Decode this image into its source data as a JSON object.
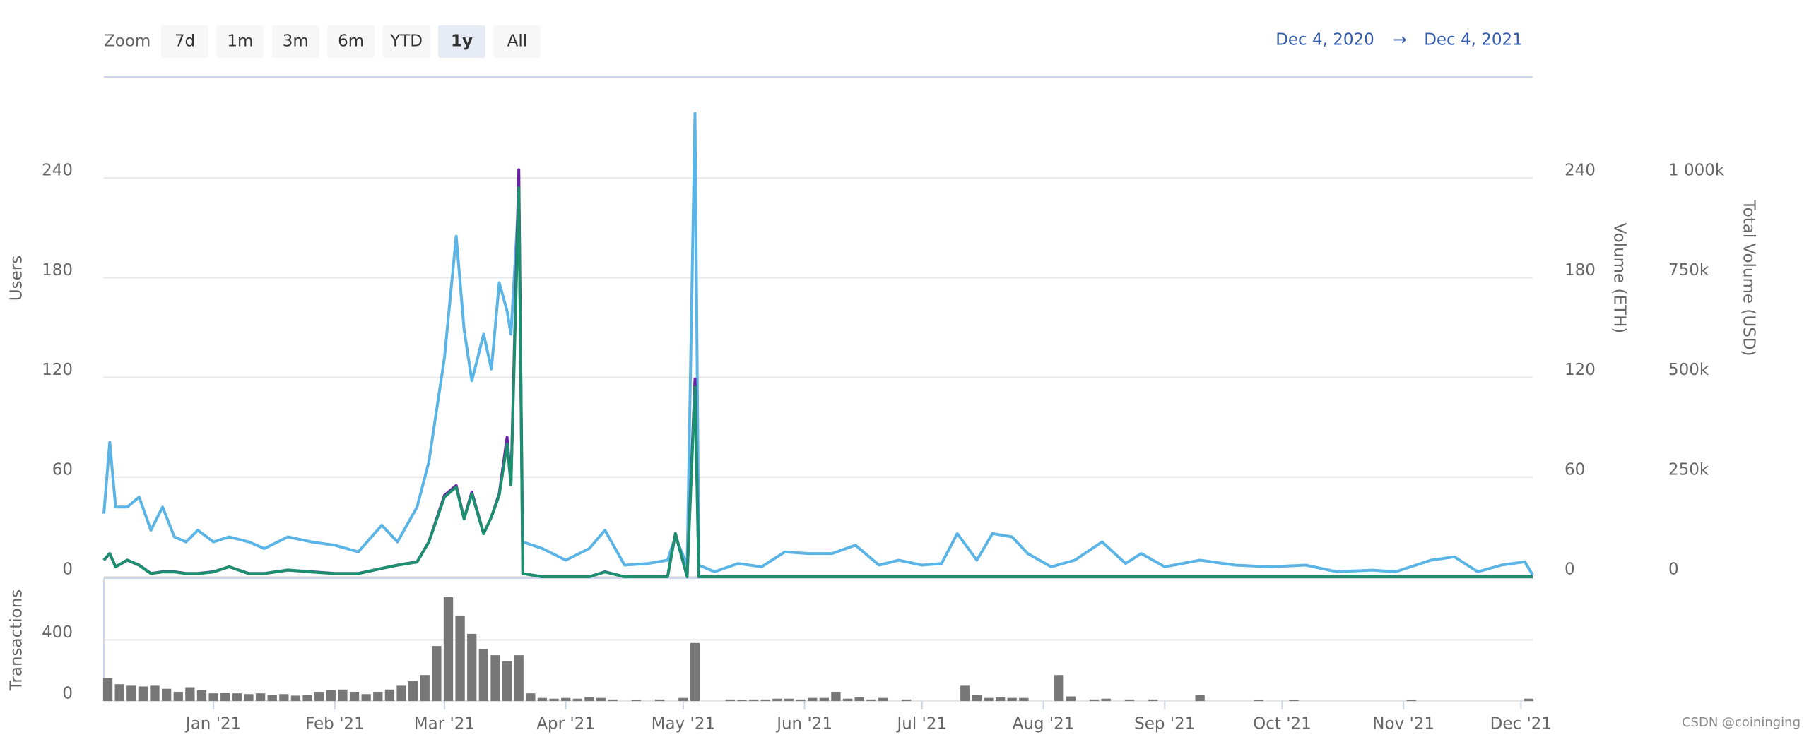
{
  "range_selector": {
    "label": "Zoom",
    "buttons": [
      "7d",
      "1m",
      "3m",
      "6m",
      "YTD",
      "1y",
      "All"
    ],
    "selected": "1y",
    "from": "Dec 4, 2020",
    "arrow": "→",
    "to": "Dec 4, 2021"
  },
  "watermark": "CSDN @coininging",
  "chart_data": [
    {
      "type": "line",
      "ylabel": "Users",
      "y2label": "Volume (ETH)",
      "y3label": "Total Volume (USD)",
      "xlim": [
        0,
        365
      ],
      "x": [
        0,
        1.5,
        3,
        6,
        9,
        12,
        15,
        18,
        21,
        24,
        28,
        32,
        37,
        41,
        47,
        53,
        59,
        65,
        71,
        75,
        80,
        83,
        87,
        90,
        92,
        94,
        97,
        99,
        101,
        103,
        104,
        106,
        107,
        112,
        118,
        124,
        128,
        133,
        139,
        144,
        146,
        149,
        151,
        152,
        156,
        162,
        168,
        174,
        180,
        186,
        192,
        198,
        203,
        209,
        214,
        218,
        223,
        227,
        232,
        236,
        242,
        248,
        255,
        261,
        265,
        271,
        280,
        289,
        298,
        307,
        315,
        324,
        330,
        339,
        345,
        351,
        357,
        363,
        365
      ],
      "ylim": [
        0,
        300
      ],
      "yticks": [
        0,
        60,
        120,
        180,
        240
      ],
      "y2lim": [
        0,
        300
      ],
      "y2ticks": [
        0,
        60,
        120,
        180,
        240
      ],
      "y3lim": [
        0,
        1250000
      ],
      "y3ticks": [
        {
          "value": 0,
          "label": "0"
        },
        {
          "value": 250000,
          "label": "250k"
        },
        {
          "value": 500000,
          "label": "500k"
        },
        {
          "value": 750000,
          "label": "750k"
        },
        {
          "value": 1000000,
          "label": "1 000k"
        }
      ],
      "grid": true,
      "series": [
        {
          "axis": "y",
          "color": "#5ab4e5",
          "values": [
            38,
            81,
            42,
            42,
            48,
            28,
            42,
            24,
            21,
            28,
            21,
            24,
            21,
            17,
            24,
            21,
            19,
            15,
            31,
            21,
            42,
            69,
            132,
            205,
            149,
            118,
            146,
            125,
            177,
            160,
            146,
            229,
            21,
            17,
            10,
            17,
            28,
            7,
            8,
            10,
            24,
            7,
            279,
            7,
            3,
            8,
            6,
            15,
            14,
            14,
            19,
            7,
            10,
            7,
            8,
            26,
            10,
            26,
            24,
            14,
            6,
            10,
            21,
            8,
            14,
            6,
            10,
            7,
            6,
            7,
            3,
            4,
            3,
            10,
            12,
            3,
            7,
            9,
            1
          ]
        },
        {
          "axis": "y2",
          "color": "#6a1fa8",
          "values": [
            10,
            14,
            6,
            10,
            7,
            2,
            3,
            3,
            2,
            2,
            3,
            6,
            2,
            2,
            4,
            3,
            2,
            2,
            5,
            7,
            9,
            21,
            49,
            55,
            35,
            51,
            26,
            36,
            50,
            84,
            56,
            245,
            2,
            0,
            0,
            0,
            3,
            0,
            0,
            0,
            26,
            0,
            119,
            0,
            0,
            0,
            0,
            0,
            0,
            0,
            0,
            0,
            0,
            0,
            0,
            0,
            0,
            0,
            0,
            0,
            0,
            0,
            0,
            0,
            0,
            0,
            0,
            0,
            0,
            0,
            0,
            0,
            0,
            0,
            0,
            0,
            0,
            0,
            0
          ]
        },
        {
          "axis": "y3",
          "color": "#1b8f6e",
          "values": [
            42000,
            58000,
            25000,
            42000,
            29000,
            8000,
            12000,
            12000,
            8000,
            8000,
            12000,
            25000,
            8000,
            8000,
            17000,
            12000,
            8000,
            8000,
            21000,
            29000,
            37000,
            87000,
            200000,
            225000,
            145000,
            208000,
            108000,
            150000,
            205000,
            333000,
            230000,
            975000,
            8000,
            0,
            0,
            0,
            12000,
            0,
            0,
            0,
            108000,
            0,
            475000,
            0,
            0,
            0,
            0,
            0,
            0,
            0,
            0,
            0,
            0,
            0,
            0,
            0,
            0,
            0,
            0,
            0,
            0,
            0,
            0,
            0,
            0,
            0,
            0,
            0,
            0,
            0,
            0,
            0,
            0,
            0,
            0,
            0,
            0,
            0,
            0
          ]
        }
      ]
    },
    {
      "type": "bar",
      "ylabel": "Transactions",
      "color": "#777777",
      "xlim": [
        0,
        365
      ],
      "xticks": [
        {
          "value": 28,
          "label": "Jan '21"
        },
        {
          "value": 59,
          "label": "Feb '21"
        },
        {
          "value": 87,
          "label": "Mar '21"
        },
        {
          "value": 118,
          "label": "Apr '21"
        },
        {
          "value": 148,
          "label": "May '21"
        },
        {
          "value": 179,
          "label": "Jun '21"
        },
        {
          "value": 209,
          "label": "Jul '21"
        },
        {
          "value": 240,
          "label": "Aug '21"
        },
        {
          "value": 271,
          "label": "Sep '21"
        },
        {
          "value": 301,
          "label": "Oct '21"
        },
        {
          "value": 332,
          "label": "Nov '21"
        },
        {
          "value": 362,
          "label": "Dec '21"
        }
      ],
      "ylim": [
        0,
        800
      ],
      "yticks": [
        0,
        400
      ],
      "grid": true,
      "x": [
        1,
        4,
        7,
        10,
        13,
        16,
        19,
        22,
        25,
        28,
        31,
        34,
        37,
        40,
        43,
        46,
        49,
        52,
        55,
        58,
        61,
        64,
        67,
        70,
        73,
        76,
        79,
        82,
        85,
        88,
        91,
        94,
        97,
        100,
        103,
        106,
        109,
        112,
        115,
        118,
        121,
        124,
        127,
        130,
        133,
        136,
        139,
        142,
        145,
        148,
        151,
        154,
        157,
        160,
        163,
        166,
        169,
        172,
        175,
        178,
        181,
        184,
        187,
        190,
        193,
        196,
        199,
        202,
        205,
        208,
        211,
        214,
        217,
        220,
        223,
        226,
        229,
        232,
        235,
        238,
        241,
        244,
        247,
        250,
        253,
        256,
        259,
        262,
        265,
        268,
        271,
        274,
        277,
        280,
        283,
        286,
        289,
        292,
        295,
        298,
        301,
        304,
        307,
        310,
        313,
        316,
        319,
        322,
        325,
        328,
        331,
        334,
        337,
        340,
        343,
        346,
        349,
        352,
        355,
        358,
        361,
        364
      ],
      "values": [
        150,
        110,
        100,
        95,
        100,
        80,
        60,
        90,
        70,
        50,
        55,
        50,
        45,
        50,
        40,
        45,
        35,
        40,
        60,
        70,
        75,
        60,
        45,
        60,
        75,
        100,
        130,
        170,
        360,
        680,
        560,
        440,
        340,
        300,
        260,
        300,
        50,
        20,
        15,
        20,
        15,
        25,
        20,
        10,
        0,
        5,
        0,
        10,
        0,
        20,
        380,
        0,
        0,
        10,
        5,
        10,
        10,
        15,
        15,
        10,
        20,
        20,
        60,
        15,
        25,
        10,
        20,
        0,
        10,
        0,
        0,
        0,
        0,
        100,
        40,
        20,
        25,
        20,
        20,
        0,
        0,
        170,
        30,
        0,
        10,
        15,
        0,
        10,
        0,
        10,
        0,
        0,
        0,
        40,
        0,
        0,
        0,
        0,
        5,
        0,
        0,
        5,
        0,
        0,
        0,
        0,
        0,
        0,
        0,
        0,
        0,
        5,
        0,
        0,
        0,
        0,
        0,
        0,
        0,
        0,
        0,
        15
      ]
    }
  ]
}
